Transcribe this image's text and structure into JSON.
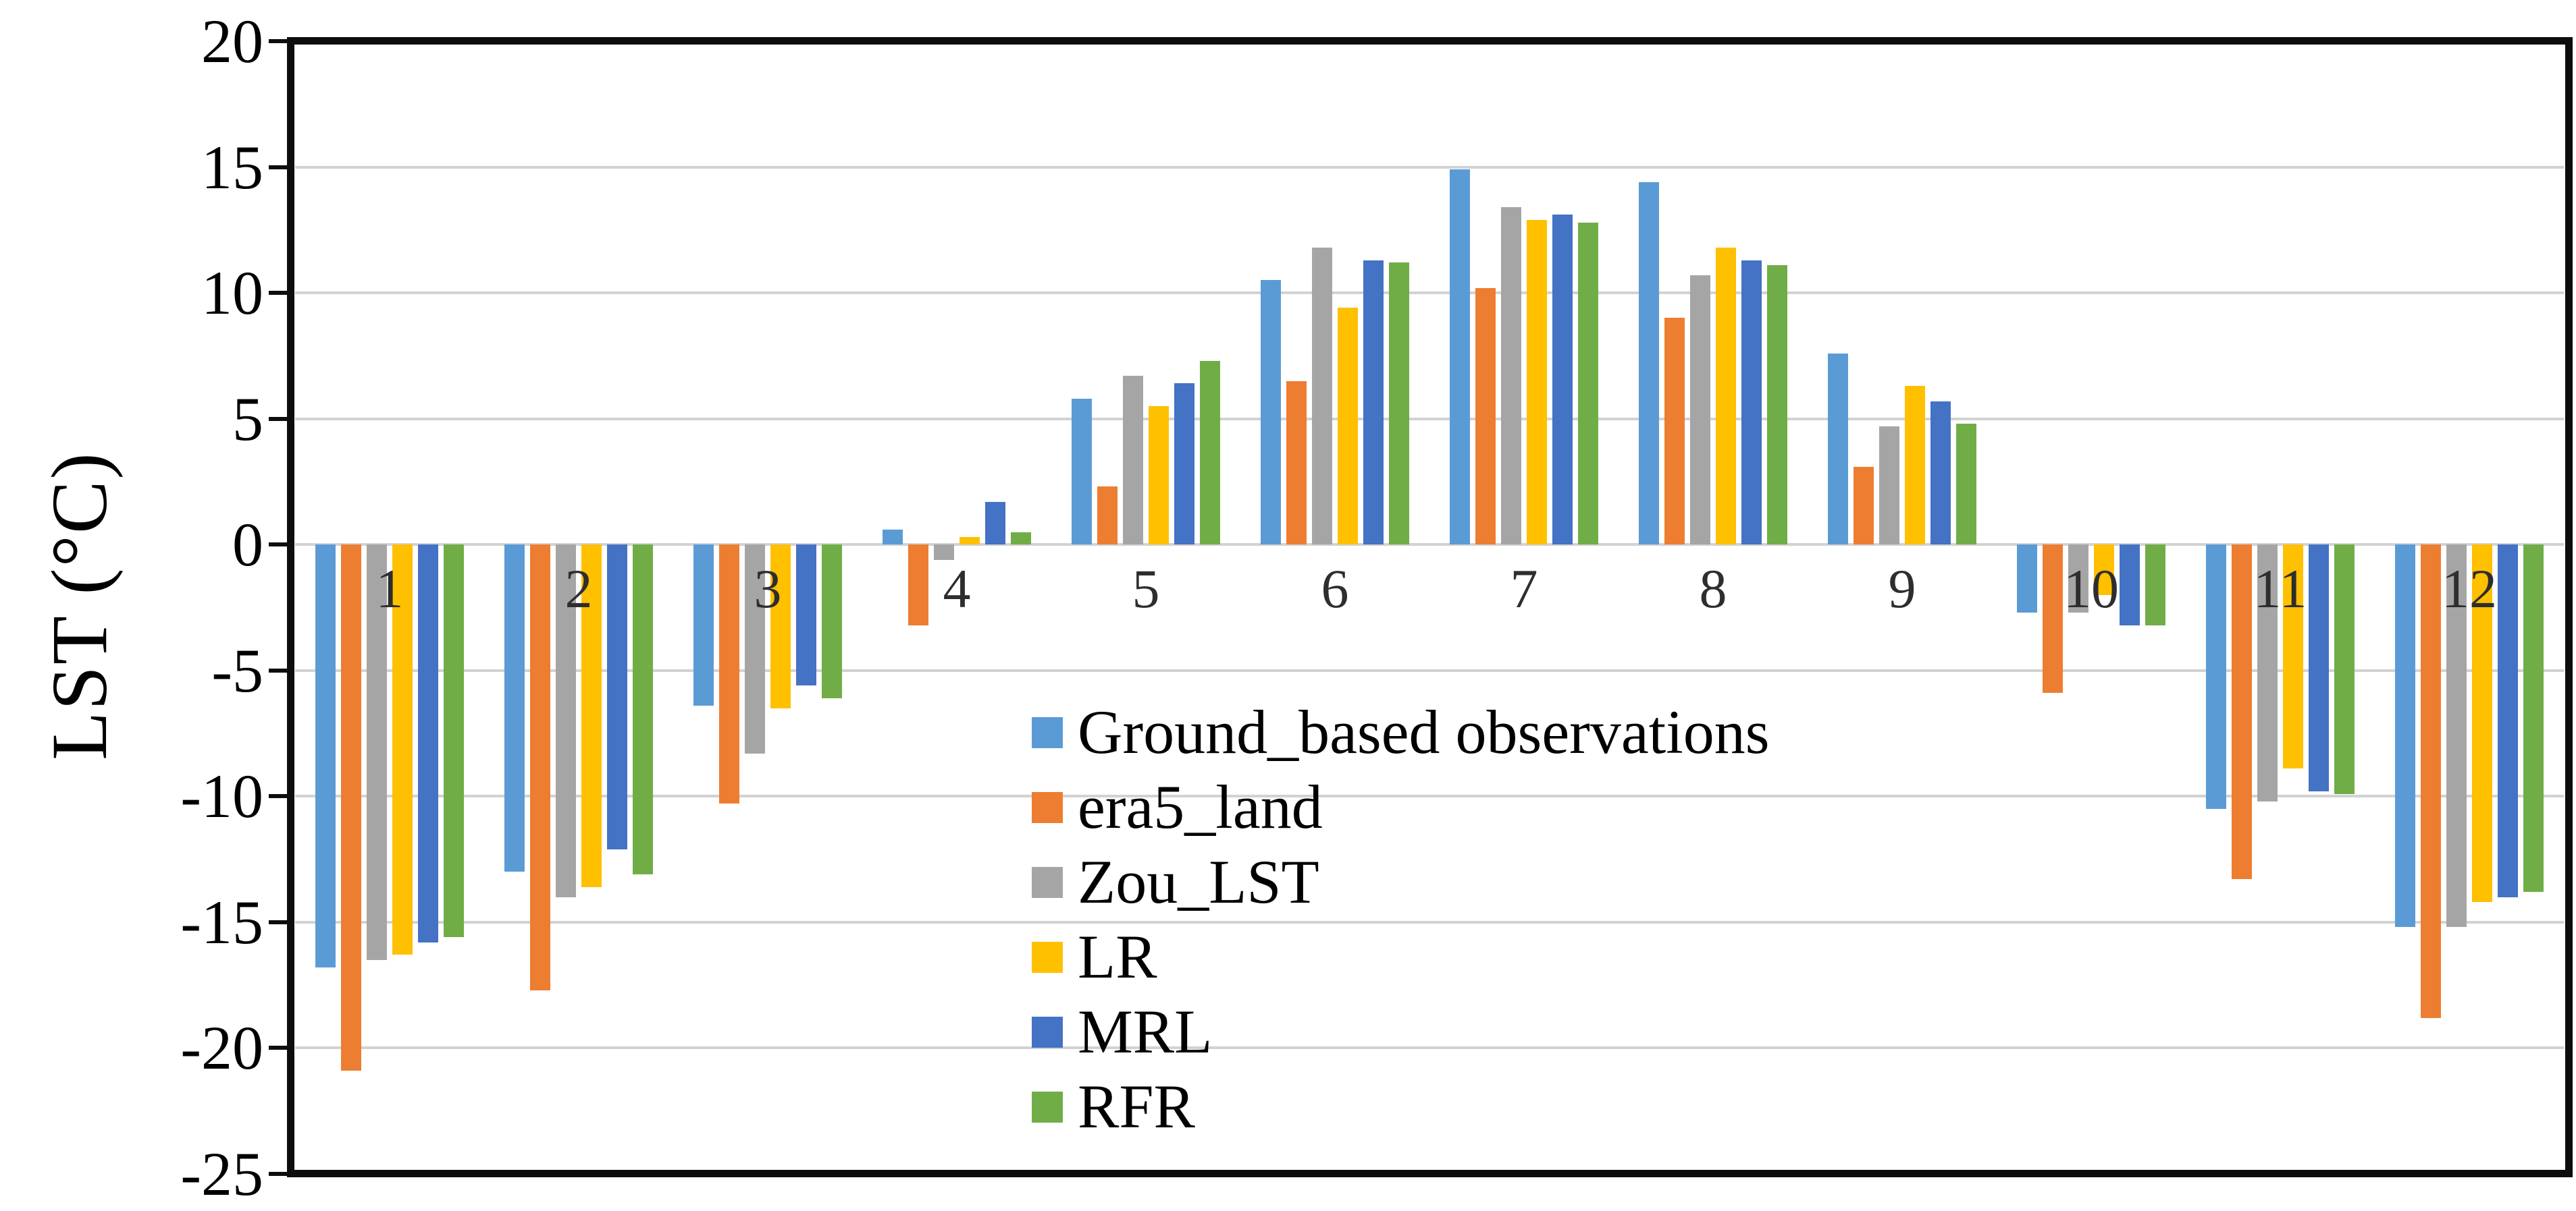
{
  "chart_data": {
    "type": "bar",
    "title": "",
    "xlabel": "",
    "ylabel": "LST (°C)",
    "ylim": [
      -25,
      20
    ],
    "yticks": [
      20,
      15,
      10,
      5,
      0,
      -5,
      -10,
      -15,
      -20,
      -25
    ],
    "grid": true,
    "legend_position": "inside-center-bottom",
    "axis_color": "#0d0d0d",
    "gridline_color": "#d2d2d2",
    "categories": [
      "1",
      "2",
      "3",
      "4",
      "5",
      "6",
      "7",
      "8",
      "9",
      "10",
      "11",
      "12"
    ],
    "series": [
      {
        "name": "Ground_based observations",
        "color": "#5B9BD5",
        "values": [
          -16.8,
          -13.0,
          -6.4,
          0.6,
          5.8,
          10.5,
          14.9,
          14.4,
          7.6,
          -2.7,
          -10.5,
          -15.2
        ]
      },
      {
        "name": "era5_land",
        "color": "#ED7D31",
        "values": [
          -20.9,
          -17.7,
          -10.3,
          -3.2,
          2.3,
          6.5,
          10.2,
          9.0,
          3.1,
          -5.9,
          -13.3,
          -18.8
        ]
      },
      {
        "name": "Zou_LST",
        "color": "#A5A5A5",
        "values": [
          -16.5,
          -14.0,
          -8.3,
          -0.6,
          6.7,
          11.8,
          13.4,
          10.7,
          4.7,
          -2.7,
          -10.2,
          -15.2
        ]
      },
      {
        "name": "LR",
        "color": "#FFC000",
        "values": [
          -16.3,
          -13.6,
          -6.5,
          0.3,
          5.5,
          9.4,
          12.9,
          11.8,
          6.3,
          -2.0,
          -8.9,
          -14.2
        ]
      },
      {
        "name": "MRL",
        "color": "#4472C4",
        "values": [
          -15.8,
          -12.1,
          -5.6,
          1.7,
          6.4,
          11.3,
          13.1,
          11.3,
          5.7,
          -3.2,
          -9.8,
          -14.0
        ]
      },
      {
        "name": "RFR",
        "color": "#70AD47",
        "values": [
          -15.6,
          -13.1,
          -6.1,
          0.5,
          7.3,
          11.2,
          12.8,
          11.1,
          4.8,
          -3.2,
          -9.9,
          -13.8
        ]
      }
    ]
  }
}
